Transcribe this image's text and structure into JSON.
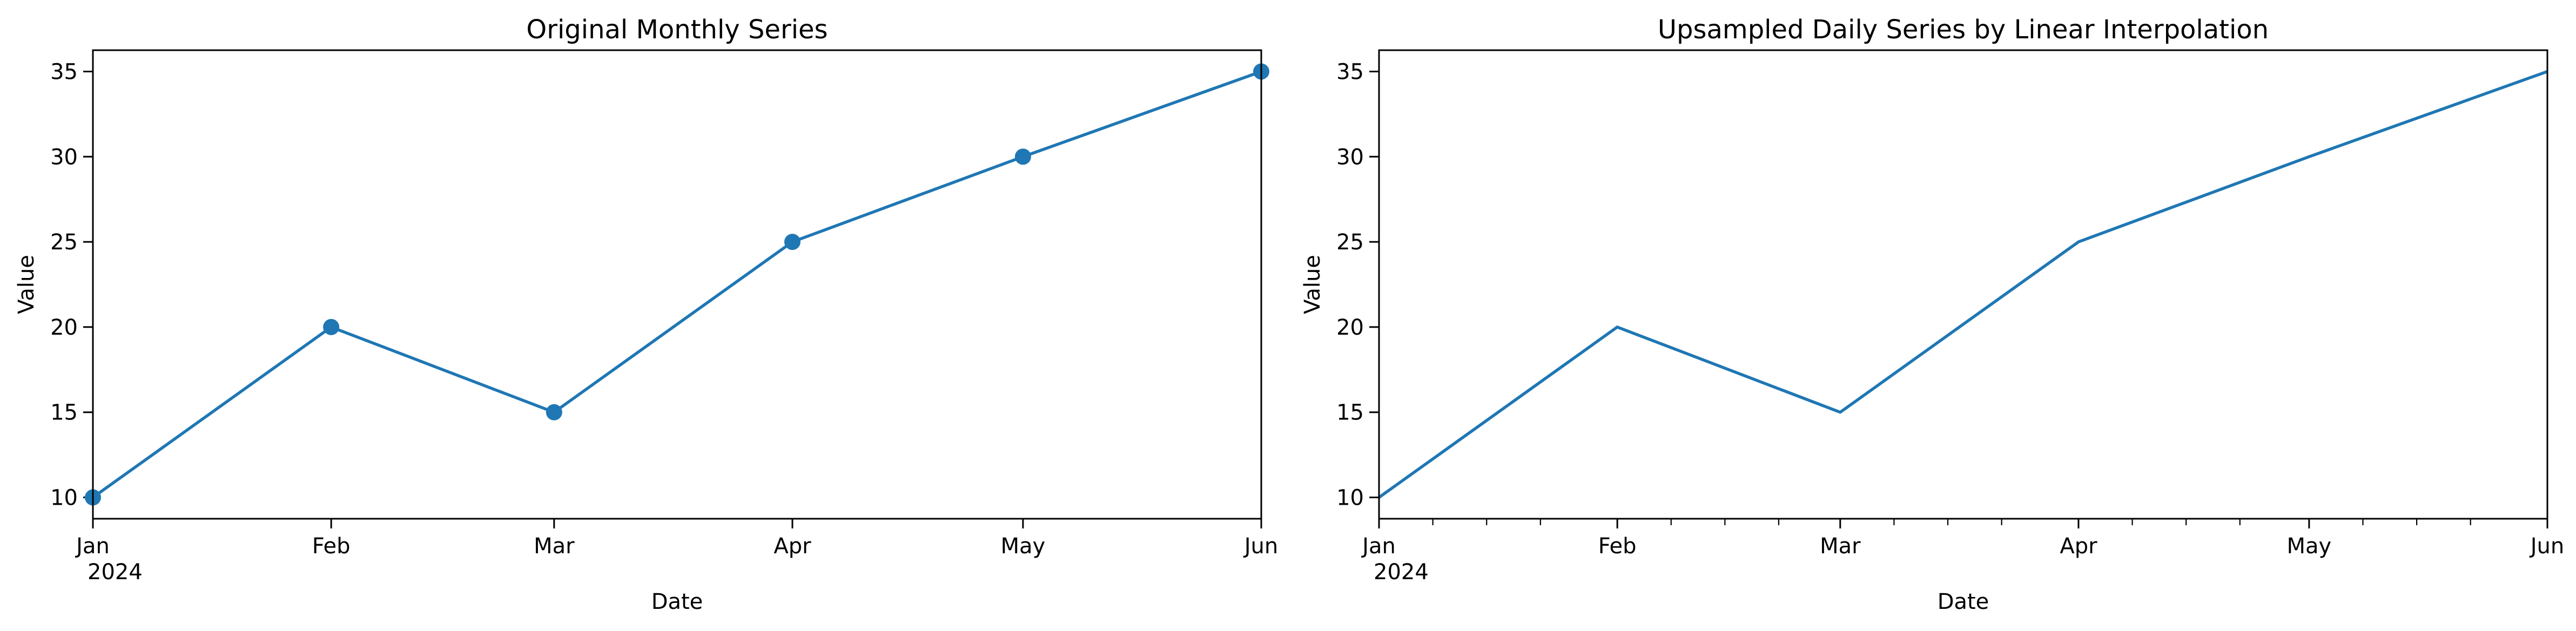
{
  "chart_data": [
    {
      "type": "line",
      "title": "Original Monthly Series",
      "xlabel": "Date",
      "ylabel": "Value",
      "markers": true,
      "x": [
        "2024-01-01",
        "2024-02-01",
        "2024-03-01",
        "2024-04-01",
        "2024-05-01",
        "2024-06-01"
      ],
      "x_tick_labels": [
        "Jan",
        "Feb",
        "Mar",
        "Apr",
        "May",
        "Jun"
      ],
      "x_tick_year": "2024",
      "series": [
        {
          "values": [
            10,
            20,
            15,
            25,
            30,
            35
          ],
          "color": "#1f77b4"
        }
      ],
      "xlim": [
        "2024-01-01",
        "2024-06-01"
      ],
      "ylim": [
        8.75,
        36.25
      ],
      "yticks": [
        10,
        15,
        20,
        25,
        30,
        35
      ],
      "minor_x_ticks": false,
      "grid": false
    },
    {
      "type": "line",
      "title": "Upsampled Daily Series by Linear Interpolation",
      "xlabel": "Date",
      "ylabel": "Value",
      "markers": false,
      "x": [
        "2024-01-01",
        "2024-02-01",
        "2024-03-01",
        "2024-04-01",
        "2024-05-01",
        "2024-06-01"
      ],
      "x_tick_labels": [
        "Jan",
        "Feb",
        "Mar",
        "Apr",
        "May",
        "Jun"
      ],
      "x_tick_year": "2024",
      "series": [
        {
          "values": [
            10,
            20,
            15,
            25,
            30,
            35
          ],
          "color": "#1f77b4"
        }
      ],
      "xlim": [
        "2024-01-01",
        "2024-06-01"
      ],
      "ylim": [
        8.75,
        36.25
      ],
      "yticks": [
        10,
        15,
        20,
        25,
        30,
        35
      ],
      "minor_x_ticks": true,
      "grid": false
    }
  ]
}
